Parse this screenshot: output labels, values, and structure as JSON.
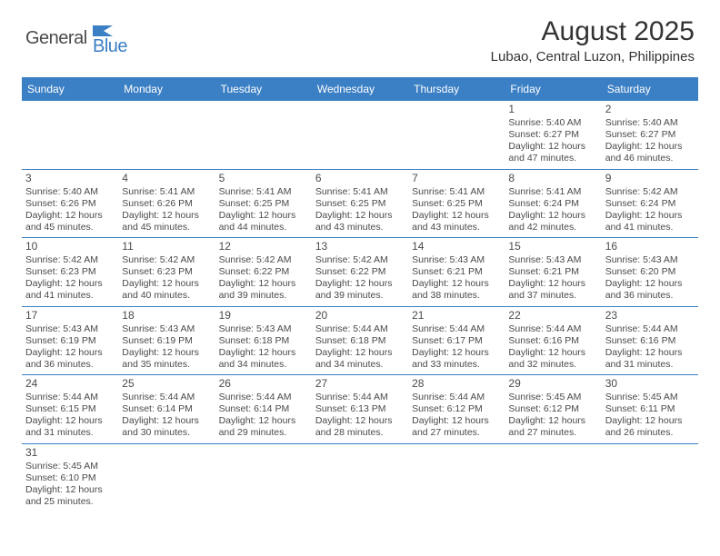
{
  "logo": {
    "text1": "General",
    "text2": "Blue"
  },
  "title": "August 2025",
  "location": "Lubao, Central Luzon, Philippines",
  "colors": {
    "header_bg": "#3b7fc4",
    "header_text": "#ffffff",
    "cell_border": "#3b7fc4",
    "body_text": "#4a4a4a",
    "title_text": "#333333",
    "page_bg": "#ffffff",
    "logo_blue": "#3b7fc4",
    "logo_gray": "#4a4a4a"
  },
  "typography": {
    "month_title_size_pt": 22,
    "location_size_pt": 11,
    "header_size_pt": 9,
    "day_num_size_pt": 9,
    "body_size_pt": 8
  },
  "days_of_week": [
    "Sunday",
    "Monday",
    "Tuesday",
    "Wednesday",
    "Thursday",
    "Friday",
    "Saturday"
  ],
  "weeks": [
    [
      null,
      null,
      null,
      null,
      null,
      {
        "n": "1",
        "sr": "Sunrise: 5:40 AM",
        "ss": "Sunset: 6:27 PM",
        "d1": "Daylight: 12 hours",
        "d2": "and 47 minutes."
      },
      {
        "n": "2",
        "sr": "Sunrise: 5:40 AM",
        "ss": "Sunset: 6:27 PM",
        "d1": "Daylight: 12 hours",
        "d2": "and 46 minutes."
      }
    ],
    [
      {
        "n": "3",
        "sr": "Sunrise: 5:40 AM",
        "ss": "Sunset: 6:26 PM",
        "d1": "Daylight: 12 hours",
        "d2": "and 45 minutes."
      },
      {
        "n": "4",
        "sr": "Sunrise: 5:41 AM",
        "ss": "Sunset: 6:26 PM",
        "d1": "Daylight: 12 hours",
        "d2": "and 45 minutes."
      },
      {
        "n": "5",
        "sr": "Sunrise: 5:41 AM",
        "ss": "Sunset: 6:25 PM",
        "d1": "Daylight: 12 hours",
        "d2": "and 44 minutes."
      },
      {
        "n": "6",
        "sr": "Sunrise: 5:41 AM",
        "ss": "Sunset: 6:25 PM",
        "d1": "Daylight: 12 hours",
        "d2": "and 43 minutes."
      },
      {
        "n": "7",
        "sr": "Sunrise: 5:41 AM",
        "ss": "Sunset: 6:25 PM",
        "d1": "Daylight: 12 hours",
        "d2": "and 43 minutes."
      },
      {
        "n": "8",
        "sr": "Sunrise: 5:41 AM",
        "ss": "Sunset: 6:24 PM",
        "d1": "Daylight: 12 hours",
        "d2": "and 42 minutes."
      },
      {
        "n": "9",
        "sr": "Sunrise: 5:42 AM",
        "ss": "Sunset: 6:24 PM",
        "d1": "Daylight: 12 hours",
        "d2": "and 41 minutes."
      }
    ],
    [
      {
        "n": "10",
        "sr": "Sunrise: 5:42 AM",
        "ss": "Sunset: 6:23 PM",
        "d1": "Daylight: 12 hours",
        "d2": "and 41 minutes."
      },
      {
        "n": "11",
        "sr": "Sunrise: 5:42 AM",
        "ss": "Sunset: 6:23 PM",
        "d1": "Daylight: 12 hours",
        "d2": "and 40 minutes."
      },
      {
        "n": "12",
        "sr": "Sunrise: 5:42 AM",
        "ss": "Sunset: 6:22 PM",
        "d1": "Daylight: 12 hours",
        "d2": "and 39 minutes."
      },
      {
        "n": "13",
        "sr": "Sunrise: 5:42 AM",
        "ss": "Sunset: 6:22 PM",
        "d1": "Daylight: 12 hours",
        "d2": "and 39 minutes."
      },
      {
        "n": "14",
        "sr": "Sunrise: 5:43 AM",
        "ss": "Sunset: 6:21 PM",
        "d1": "Daylight: 12 hours",
        "d2": "and 38 minutes."
      },
      {
        "n": "15",
        "sr": "Sunrise: 5:43 AM",
        "ss": "Sunset: 6:21 PM",
        "d1": "Daylight: 12 hours",
        "d2": "and 37 minutes."
      },
      {
        "n": "16",
        "sr": "Sunrise: 5:43 AM",
        "ss": "Sunset: 6:20 PM",
        "d1": "Daylight: 12 hours",
        "d2": "and 36 minutes."
      }
    ],
    [
      {
        "n": "17",
        "sr": "Sunrise: 5:43 AM",
        "ss": "Sunset: 6:19 PM",
        "d1": "Daylight: 12 hours",
        "d2": "and 36 minutes."
      },
      {
        "n": "18",
        "sr": "Sunrise: 5:43 AM",
        "ss": "Sunset: 6:19 PM",
        "d1": "Daylight: 12 hours",
        "d2": "and 35 minutes."
      },
      {
        "n": "19",
        "sr": "Sunrise: 5:43 AM",
        "ss": "Sunset: 6:18 PM",
        "d1": "Daylight: 12 hours",
        "d2": "and 34 minutes."
      },
      {
        "n": "20",
        "sr": "Sunrise: 5:44 AM",
        "ss": "Sunset: 6:18 PM",
        "d1": "Daylight: 12 hours",
        "d2": "and 34 minutes."
      },
      {
        "n": "21",
        "sr": "Sunrise: 5:44 AM",
        "ss": "Sunset: 6:17 PM",
        "d1": "Daylight: 12 hours",
        "d2": "and 33 minutes."
      },
      {
        "n": "22",
        "sr": "Sunrise: 5:44 AM",
        "ss": "Sunset: 6:16 PM",
        "d1": "Daylight: 12 hours",
        "d2": "and 32 minutes."
      },
      {
        "n": "23",
        "sr": "Sunrise: 5:44 AM",
        "ss": "Sunset: 6:16 PM",
        "d1": "Daylight: 12 hours",
        "d2": "and 31 minutes."
      }
    ],
    [
      {
        "n": "24",
        "sr": "Sunrise: 5:44 AM",
        "ss": "Sunset: 6:15 PM",
        "d1": "Daylight: 12 hours",
        "d2": "and 31 minutes."
      },
      {
        "n": "25",
        "sr": "Sunrise: 5:44 AM",
        "ss": "Sunset: 6:14 PM",
        "d1": "Daylight: 12 hours",
        "d2": "and 30 minutes."
      },
      {
        "n": "26",
        "sr": "Sunrise: 5:44 AM",
        "ss": "Sunset: 6:14 PM",
        "d1": "Daylight: 12 hours",
        "d2": "and 29 minutes."
      },
      {
        "n": "27",
        "sr": "Sunrise: 5:44 AM",
        "ss": "Sunset: 6:13 PM",
        "d1": "Daylight: 12 hours",
        "d2": "and 28 minutes."
      },
      {
        "n": "28",
        "sr": "Sunrise: 5:44 AM",
        "ss": "Sunset: 6:12 PM",
        "d1": "Daylight: 12 hours",
        "d2": "and 27 minutes."
      },
      {
        "n": "29",
        "sr": "Sunrise: 5:45 AM",
        "ss": "Sunset: 6:12 PM",
        "d1": "Daylight: 12 hours",
        "d2": "and 27 minutes."
      },
      {
        "n": "30",
        "sr": "Sunrise: 5:45 AM",
        "ss": "Sunset: 6:11 PM",
        "d1": "Daylight: 12 hours",
        "d2": "and 26 minutes."
      }
    ],
    [
      {
        "n": "31",
        "sr": "Sunrise: 5:45 AM",
        "ss": "Sunset: 6:10 PM",
        "d1": "Daylight: 12 hours",
        "d2": "and 25 minutes."
      },
      null,
      null,
      null,
      null,
      null,
      null
    ]
  ]
}
